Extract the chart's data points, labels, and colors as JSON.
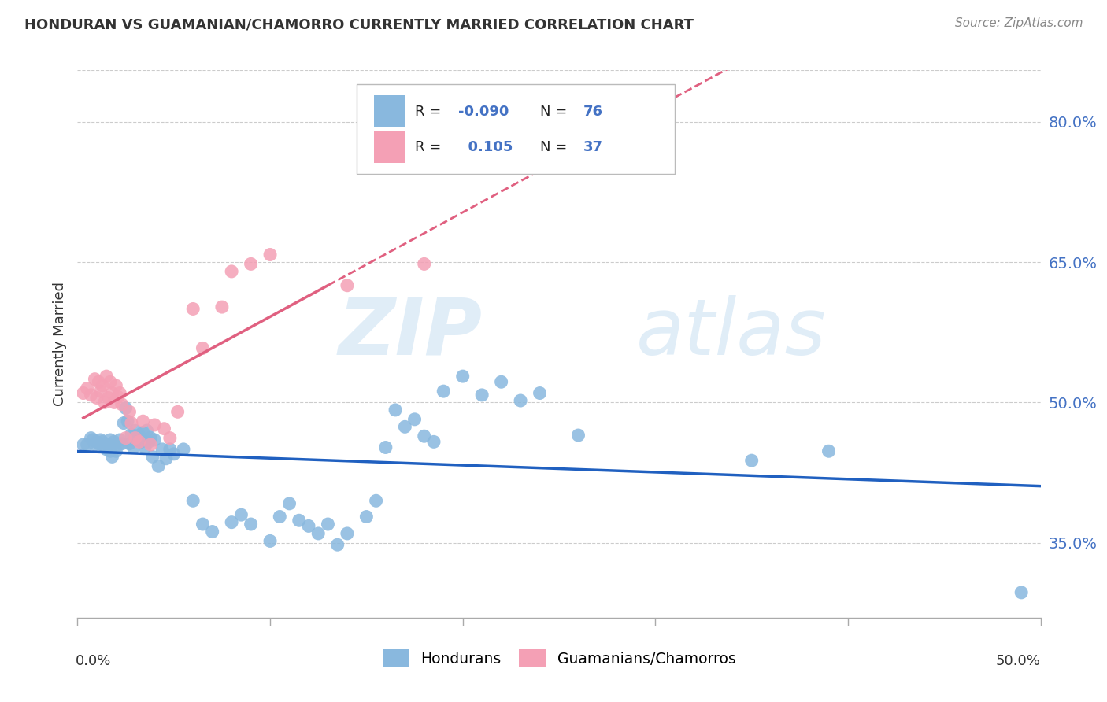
{
  "title": "HONDURAN VS GUAMANIAN/CHAMORRO CURRENTLY MARRIED CORRELATION CHART",
  "source": "Source: ZipAtlas.com",
  "ylabel": "Currently Married",
  "y_ticks": [
    0.35,
    0.5,
    0.65,
    0.8
  ],
  "y_tick_labels": [
    "35.0%",
    "50.0%",
    "65.0%",
    "80.0%"
  ],
  "xlim": [
    0.0,
    0.5
  ],
  "ylim": [
    0.27,
    0.855
  ],
  "honduran_color": "#89b8de",
  "guamanian_color": "#f4a0b5",
  "honduran_line_color": "#2060c0",
  "guamanian_line_color": "#e06080",
  "watermark_zip": "ZIP",
  "watermark_atlas": "atlas",
  "background_color": "#ffffff",
  "grid_color": "#cccccc",
  "legend_box_color": "#aaaaaa",
  "honduran_x": [
    0.003,
    0.005,
    0.007,
    0.008,
    0.009,
    0.01,
    0.011,
    0.012,
    0.013,
    0.014,
    0.015,
    0.016,
    0.017,
    0.017,
    0.018,
    0.019,
    0.02,
    0.021,
    0.022,
    0.023,
    0.024,
    0.025,
    0.026,
    0.027,
    0.028,
    0.029,
    0.03,
    0.031,
    0.032,
    0.033,
    0.034,
    0.035,
    0.036,
    0.037,
    0.038,
    0.039,
    0.04,
    0.042,
    0.044,
    0.046,
    0.048,
    0.05,
    0.055,
    0.06,
    0.065,
    0.07,
    0.08,
    0.085,
    0.09,
    0.1,
    0.105,
    0.11,
    0.115,
    0.12,
    0.125,
    0.13,
    0.135,
    0.14,
    0.15,
    0.155,
    0.16,
    0.165,
    0.17,
    0.175,
    0.18,
    0.185,
    0.19,
    0.2,
    0.21,
    0.22,
    0.23,
    0.24,
    0.26,
    0.35,
    0.39,
    0.49
  ],
  "honduran_y": [
    0.455,
    0.455,
    0.462,
    0.46,
    0.455,
    0.458,
    0.456,
    0.46,
    0.458,
    0.452,
    0.45,
    0.455,
    0.448,
    0.46,
    0.442,
    0.458,
    0.448,
    0.455,
    0.46,
    0.456,
    0.478,
    0.494,
    0.48,
    0.456,
    0.466,
    0.452,
    0.47,
    0.46,
    0.465,
    0.458,
    0.468,
    0.452,
    0.47,
    0.458,
    0.462,
    0.442,
    0.46,
    0.432,
    0.45,
    0.44,
    0.45,
    0.445,
    0.45,
    0.395,
    0.37,
    0.362,
    0.372,
    0.38,
    0.37,
    0.352,
    0.378,
    0.392,
    0.374,
    0.368,
    0.36,
    0.37,
    0.348,
    0.36,
    0.378,
    0.395,
    0.452,
    0.492,
    0.474,
    0.482,
    0.464,
    0.458,
    0.512,
    0.528,
    0.508,
    0.522,
    0.502,
    0.51,
    0.465,
    0.438,
    0.448,
    0.297
  ],
  "guamanian_x": [
    0.003,
    0.005,
    0.007,
    0.009,
    0.01,
    0.011,
    0.012,
    0.013,
    0.014,
    0.015,
    0.016,
    0.017,
    0.018,
    0.019,
    0.02,
    0.021,
    0.022,
    0.023,
    0.025,
    0.027,
    0.028,
    0.03,
    0.032,
    0.034,
    0.038,
    0.04,
    0.045,
    0.048,
    0.052,
    0.06,
    0.065,
    0.075,
    0.08,
    0.09,
    0.1,
    0.14,
    0.18
  ],
  "guamanian_y": [
    0.51,
    0.515,
    0.508,
    0.525,
    0.505,
    0.522,
    0.512,
    0.518,
    0.5,
    0.528,
    0.505,
    0.522,
    0.51,
    0.5,
    0.518,
    0.506,
    0.51,
    0.498,
    0.462,
    0.49,
    0.478,
    0.462,
    0.458,
    0.48,
    0.455,
    0.476,
    0.472,
    0.462,
    0.49,
    0.6,
    0.558,
    0.602,
    0.64,
    0.648,
    0.658,
    0.625,
    0.648
  ]
}
